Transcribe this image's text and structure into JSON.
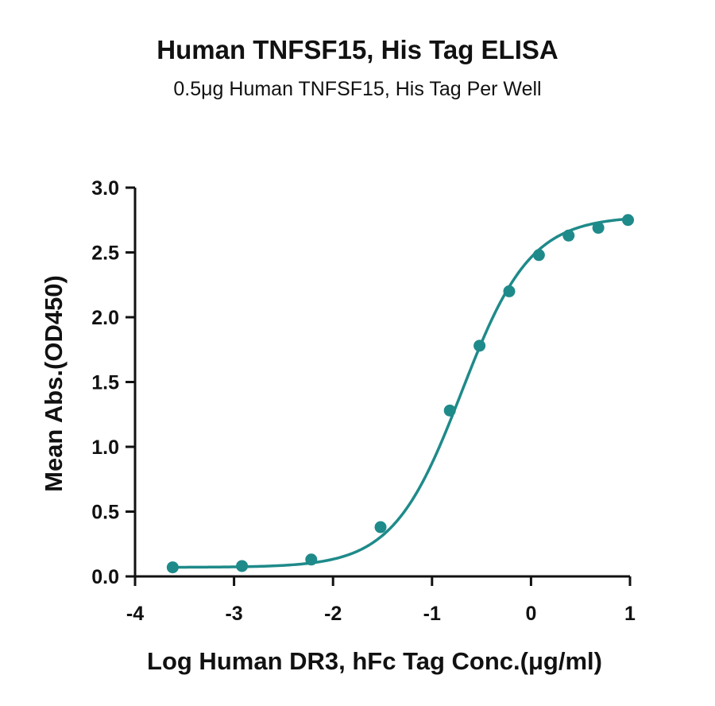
{
  "chart_data": {
    "type": "line",
    "title": "Human TNFSF15, His Tag ELISA",
    "subtitle": "0.5μg Human TNFSF15, His Tag Per Well",
    "xlabel": "Log Human DR3, hFc Tag Conc.(μg/ml)",
    "ylabel": "Mean Abs.(OD450)",
    "xlim": [
      -4,
      1
    ],
    "ylim": [
      0,
      3.0
    ],
    "xticks": [
      -4,
      -3,
      -2,
      -1,
      0,
      1
    ],
    "xtick_labels": [
      "-4",
      "-3",
      "-2",
      "-1",
      "0",
      "1"
    ],
    "yticks": [
      0,
      0.5,
      1.0,
      1.5,
      2.0,
      2.5,
      3.0
    ],
    "ytick_labels": [
      "0.0",
      "0.5",
      "1.0",
      "1.5",
      "2.0",
      "2.5",
      "3.0"
    ],
    "grid": false,
    "series": [
      {
        "color": "#1f8a8a",
        "x": [
          -3.62,
          -2.92,
          -2.22,
          -1.52,
          -0.82,
          -0.52,
          -0.22,
          0.08,
          0.38,
          0.68,
          0.98
        ],
        "y": [
          0.07,
          0.08,
          0.13,
          0.38,
          1.28,
          1.78,
          2.2,
          2.48,
          2.63,
          2.69,
          2.75
        ]
      }
    ],
    "fit": {
      "bottom": 0.07,
      "top": 2.78,
      "logEC50": -0.7,
      "hill": 1.25
    }
  }
}
